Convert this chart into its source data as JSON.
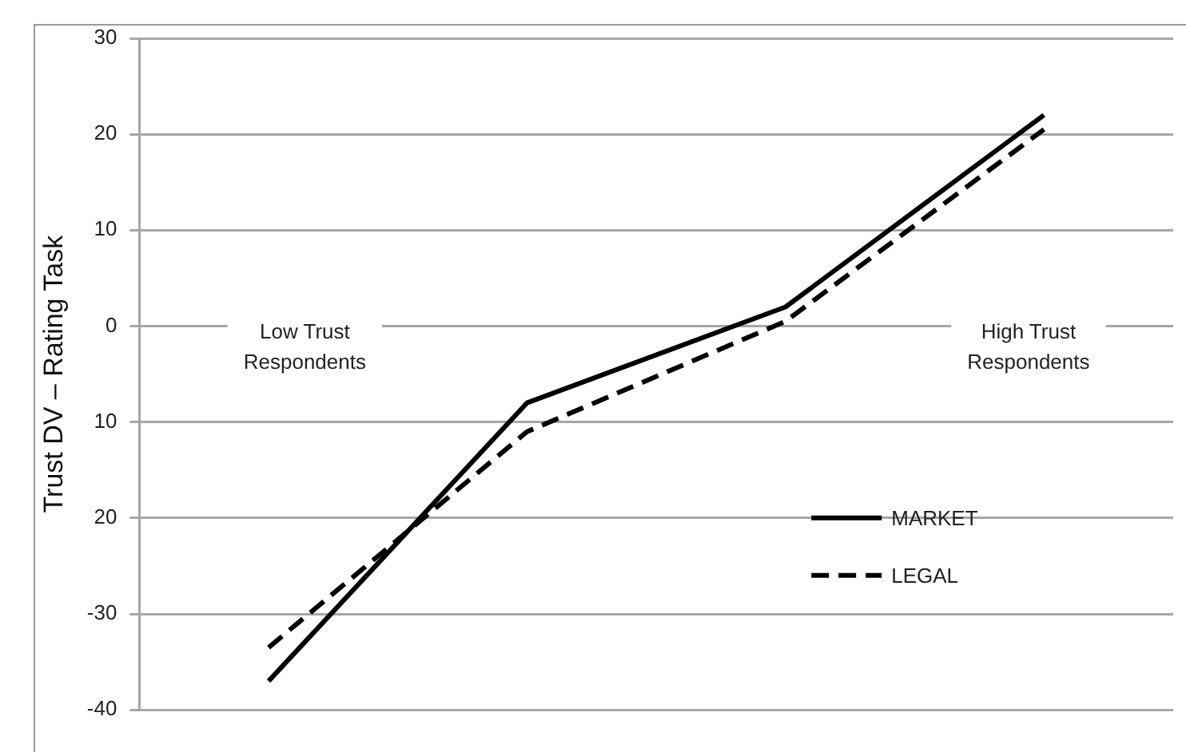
{
  "chart_data": {
    "type": "line",
    "ylabel": "Trust DV – Rating Task",
    "categories": [
      null,
      null,
      null,
      null
    ],
    "series": [
      {
        "name": "MARKET",
        "color": "#000000",
        "line_style": "solid",
        "values": [
          -37,
          -8,
          2,
          22
        ]
      },
      {
        "name": "LEGAL",
        "color": "#000000",
        "line_style": "dashed",
        "values": [
          -33.5,
          -11,
          0.5,
          20.5
        ]
      }
    ],
    "ylim": [
      -40,
      30
    ],
    "yticks": [
      30,
      20,
      10,
      0,
      {
        "value": -10,
        "label": "10"
      },
      {
        "value": -20,
        "label": "20"
      },
      -30,
      -40
    ],
    "annotations": [
      "Low Trust Respondents",
      "High Trust Respondents"
    ],
    "grid": "y",
    "legend": "bottom right",
    "marker": "none"
  }
}
